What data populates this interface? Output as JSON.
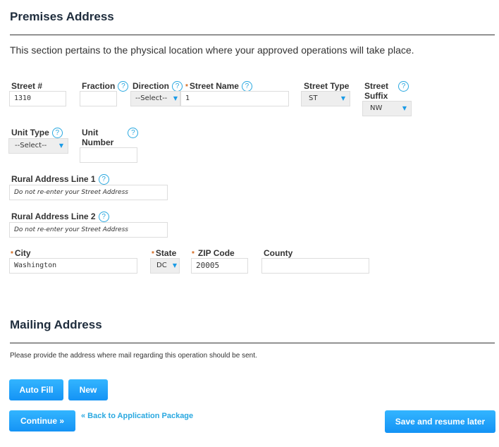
{
  "premises": {
    "title": "Premises Address",
    "description": "This section pertains to the physical location where your approved operations will take place.",
    "street_number": {
      "label": "Street #",
      "value": "1310"
    },
    "fraction": {
      "label": "Fraction",
      "value": ""
    },
    "direction": {
      "label": "Direction",
      "value": "--Select--"
    },
    "street_name": {
      "label": "Street Name",
      "value": "1"
    },
    "street_type": {
      "label": "Street Type",
      "value": "ST"
    },
    "street_suffix": {
      "label1": "Street",
      "label2": "Suffix",
      "value": "NW"
    },
    "unit_type": {
      "label": "Unit Type",
      "value": "--Select--"
    },
    "unit_number": {
      "label1": "Unit",
      "label2": "Number",
      "value": ""
    },
    "rural1": {
      "label": "Rural Address Line 1",
      "placeholder": "Do not re-enter your Street Address"
    },
    "rural2": {
      "label": "Rural Address Line 2",
      "placeholder": "Do not re-enter your Street Address"
    },
    "city": {
      "label": "City",
      "value": "Washington"
    },
    "state": {
      "label": "State",
      "value": "DC"
    },
    "zip": {
      "label": "ZIP Code",
      "value": "20005"
    },
    "county": {
      "label": "County",
      "value": ""
    },
    "help": "?",
    "required": "*",
    "arrow": "▼"
  },
  "mailing": {
    "title": "Mailing Address",
    "description": "Please provide the address where mail regarding this operation should be sent.",
    "autofill": "Auto Fill",
    "new": "New"
  },
  "footer": {
    "continue": "Continue »",
    "back": "« Back to Application Package",
    "save": "Save and resume later"
  },
  "colors": {
    "accent": "#1a9be6",
    "required": "#d2691e"
  }
}
